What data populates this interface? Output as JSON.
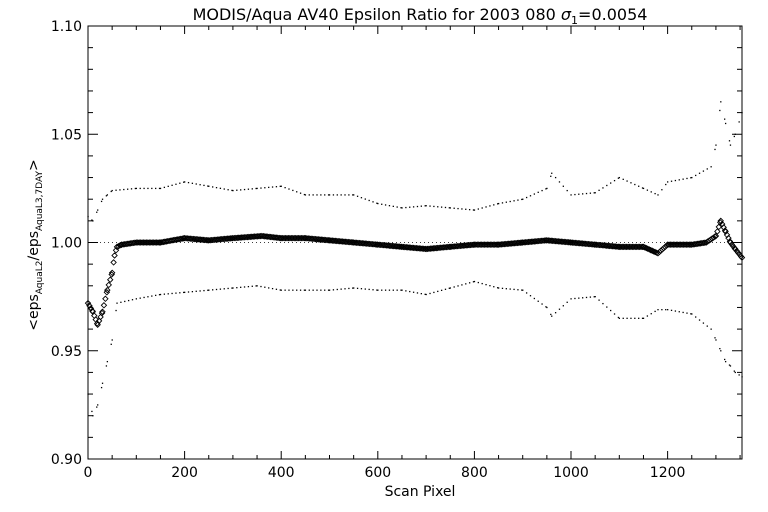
{
  "chart_data": {
    "type": "scatter",
    "title": {
      "main": "MODIS/Aqua AV40 Epsilon Ratio for 2003 080 ",
      "sigma_symbol": "σ",
      "sigma_subscript": "1",
      "sigma_value": "=0.0054"
    },
    "xlabel": "Scan Pixel",
    "ylabel": {
      "lead": "<eps",
      "sub1": "AquaL2",
      "mid": "/eps",
      "sub2": "AquaL3,7DAY",
      "tail": ">"
    },
    "xlim": [
      0,
      1354
    ],
    "ylim": [
      0.9,
      1.1
    ],
    "x_ticks": [
      0,
      200,
      400,
      600,
      800,
      1000,
      1200
    ],
    "x_tick_labels": [
      "0",
      "200",
      "400",
      "600",
      "800",
      "1000",
      "1200"
    ],
    "y_ticks": [
      0.9,
      0.95,
      1.0,
      1.05,
      1.1
    ],
    "y_tick_labels": [
      "0.90",
      "0.95",
      "1.00",
      "1.05",
      "1.10"
    ],
    "grid": false,
    "reference_line": 1.0,
    "series": [
      {
        "role": "mean",
        "style": "diamond",
        "points": [
          [
            0,
            0.972
          ],
          [
            10,
            0.968
          ],
          [
            20,
            0.962
          ],
          [
            30,
            0.968
          ],
          [
            40,
            0.978
          ],
          [
            50,
            0.986
          ],
          [
            55,
            0.994
          ],
          [
            60,
            0.998
          ],
          [
            70,
            0.999
          ],
          [
            100,
            1.0
          ],
          [
            150,
            1.0
          ],
          [
            200,
            1.002
          ],
          [
            250,
            1.001
          ],
          [
            300,
            1.002
          ],
          [
            360,
            1.003
          ],
          [
            400,
            1.002
          ],
          [
            450,
            1.002
          ],
          [
            500,
            1.001
          ],
          [
            550,
            1.0
          ],
          [
            600,
            0.999
          ],
          [
            650,
            0.998
          ],
          [
            700,
            0.997
          ],
          [
            750,
            0.998
          ],
          [
            800,
            0.999
          ],
          [
            850,
            0.999
          ],
          [
            900,
            1.0
          ],
          [
            950,
            1.001
          ],
          [
            1000,
            1.0
          ],
          [
            1050,
            0.999
          ],
          [
            1100,
            0.998
          ],
          [
            1150,
            0.998
          ],
          [
            1180,
            0.995
          ],
          [
            1200,
            0.999
          ],
          [
            1250,
            0.999
          ],
          [
            1280,
            1.0
          ],
          [
            1300,
            1.003
          ],
          [
            1310,
            1.01
          ],
          [
            1320,
            1.005
          ],
          [
            1330,
            1.0
          ],
          [
            1340,
            0.997
          ],
          [
            1354,
            0.993
          ]
        ]
      },
      {
        "role": "upper-envelope",
        "style": "dot",
        "points": [
          [
            0,
            1.012
          ],
          [
            10,
            1.01
          ],
          [
            20,
            1.015
          ],
          [
            30,
            1.02
          ],
          [
            40,
            1.022
          ],
          [
            50,
            1.024
          ],
          [
            100,
            1.025
          ],
          [
            150,
            1.025
          ],
          [
            200,
            1.028
          ],
          [
            250,
            1.026
          ],
          [
            300,
            1.024
          ],
          [
            350,
            1.025
          ],
          [
            400,
            1.026
          ],
          [
            450,
            1.022
          ],
          [
            500,
            1.022
          ],
          [
            550,
            1.022
          ],
          [
            600,
            1.018
          ],
          [
            650,
            1.016
          ],
          [
            700,
            1.017
          ],
          [
            750,
            1.016
          ],
          [
            800,
            1.015
          ],
          [
            850,
            1.018
          ],
          [
            900,
            1.02
          ],
          [
            950,
            1.025
          ],
          [
            960,
            1.032
          ],
          [
            1000,
            1.022
          ],
          [
            1050,
            1.023
          ],
          [
            1100,
            1.03
          ],
          [
            1150,
            1.025
          ],
          [
            1180,
            1.022
          ],
          [
            1200,
            1.028
          ],
          [
            1250,
            1.03
          ],
          [
            1290,
            1.035
          ],
          [
            1300,
            1.045
          ],
          [
            1310,
            1.065
          ],
          [
            1320,
            1.055
          ],
          [
            1330,
            1.045
          ],
          [
            1340,
            1.05
          ],
          [
            1354,
            1.06
          ]
        ]
      },
      {
        "role": "lower-envelope",
        "style": "dot",
        "points": [
          [
            0,
            0.93
          ],
          [
            10,
            0.92
          ],
          [
            20,
            0.925
          ],
          [
            30,
            0.935
          ],
          [
            40,
            0.945
          ],
          [
            50,
            0.955
          ],
          [
            60,
            0.972
          ],
          [
            100,
            0.974
          ],
          [
            150,
            0.976
          ],
          [
            200,
            0.977
          ],
          [
            250,
            0.978
          ],
          [
            300,
            0.979
          ],
          [
            350,
            0.98
          ],
          [
            400,
            0.978
          ],
          [
            450,
            0.978
          ],
          [
            500,
            0.978
          ],
          [
            550,
            0.979
          ],
          [
            600,
            0.978
          ],
          [
            650,
            0.978
          ],
          [
            700,
            0.976
          ],
          [
            750,
            0.979
          ],
          [
            800,
            0.982
          ],
          [
            850,
            0.979
          ],
          [
            900,
            0.978
          ],
          [
            950,
            0.97
          ],
          [
            960,
            0.966
          ],
          [
            1000,
            0.974
          ],
          [
            1050,
            0.975
          ],
          [
            1100,
            0.965
          ],
          [
            1150,
            0.965
          ],
          [
            1180,
            0.969
          ],
          [
            1200,
            0.969
          ],
          [
            1250,
            0.967
          ],
          [
            1290,
            0.96
          ],
          [
            1300,
            0.955
          ],
          [
            1310,
            0.95
          ],
          [
            1320,
            0.945
          ],
          [
            1330,
            0.943
          ],
          [
            1340,
            0.94
          ],
          [
            1354,
            0.938
          ]
        ]
      }
    ]
  }
}
